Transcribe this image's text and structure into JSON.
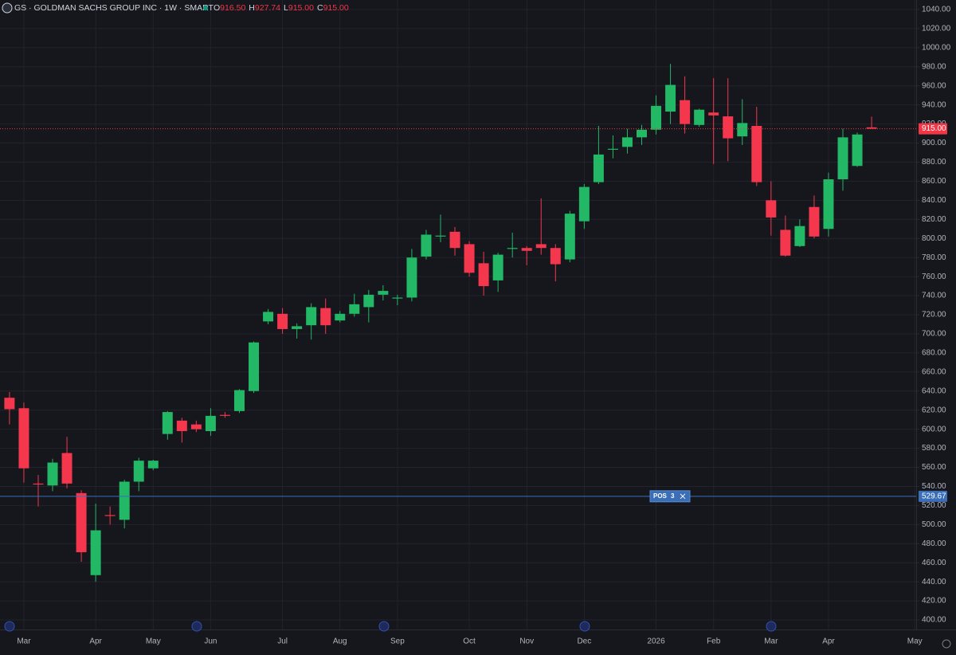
{
  "header": {
    "title": "GS · GOLDMAN SACHS GROUP INC · 1W · SMART",
    "ohlc": [
      {
        "label": "O",
        "value": "916.50"
      },
      {
        "label": "H",
        "value": "927.74"
      },
      {
        "label": "L",
        "value": "915.00"
      },
      {
        "label": "C",
        "value": "915.00"
      }
    ]
  },
  "chart_data": {
    "type": "candlestick",
    "up_color": "#22b865",
    "down_color": "#f5374e",
    "grid": true,
    "xlim": [
      -0.66,
      63.1
    ],
    "xticks": [
      {
        "value": 1,
        "label": "Mar"
      },
      {
        "value": 6,
        "label": "Apr"
      },
      {
        "value": 10,
        "label": "May"
      },
      {
        "value": 14,
        "label": "Jun"
      },
      {
        "value": 19,
        "label": "Jul"
      },
      {
        "value": 23,
        "label": "Aug"
      },
      {
        "value": 27,
        "label": "Sep"
      },
      {
        "value": 32,
        "label": "Oct"
      },
      {
        "value": 36,
        "label": "Nov"
      },
      {
        "value": 40,
        "label": "Dec"
      },
      {
        "value": 45,
        "label": "2026"
      },
      {
        "value": 49,
        "label": "Feb"
      },
      {
        "value": 53,
        "label": "Mar"
      },
      {
        "value": 57,
        "label": "Apr"
      },
      {
        "value": 63,
        "label": "May"
      }
    ],
    "ylim": [
      390,
      1050
    ],
    "yticks": [
      {
        "value": 400,
        "label": "400.00"
      },
      {
        "value": 420,
        "label": "420.00"
      },
      {
        "value": 440,
        "label": "440.00"
      },
      {
        "value": 460,
        "label": "460.00"
      },
      {
        "value": 480,
        "label": "480.00"
      },
      {
        "value": 500,
        "label": "500.00"
      },
      {
        "value": 520,
        "label": "520.00"
      },
      {
        "value": 540,
        "label": "540.00"
      },
      {
        "value": 560,
        "label": "560.00"
      },
      {
        "value": 580,
        "label": "580.00"
      },
      {
        "value": 600,
        "label": "600.00"
      },
      {
        "value": 620,
        "label": "620.00"
      },
      {
        "value": 640,
        "label": "640.00"
      },
      {
        "value": 660,
        "label": "660.00"
      },
      {
        "value": 680,
        "label": "680.00"
      },
      {
        "value": 700,
        "label": "700.00"
      },
      {
        "value": 720,
        "label": "720.00"
      },
      {
        "value": 740,
        "label": "740.00"
      },
      {
        "value": 760,
        "label": "760.00"
      },
      {
        "value": 780,
        "label": "780.00"
      },
      {
        "value": 800,
        "label": "800.00"
      },
      {
        "value": 820,
        "label": "820.00"
      },
      {
        "value": 840,
        "label": "840.00"
      },
      {
        "value": 860,
        "label": "860.00"
      },
      {
        "value": 880,
        "label": "880.00"
      },
      {
        "value": 900,
        "label": "900.00"
      },
      {
        "value": 920,
        "label": "920.00"
      },
      {
        "value": 940,
        "label": "940.00"
      },
      {
        "value": 960,
        "label": "960.00"
      },
      {
        "value": 980,
        "label": "980.00"
      },
      {
        "value": 1000,
        "label": "1000.00"
      },
      {
        "value": 1020,
        "label": "1020.00"
      },
      {
        "value": 1040,
        "label": "1040.00"
      }
    ],
    "open": [
      633,
      622,
      543,
      541,
      575,
      533,
      447,
      510,
      505,
      545,
      559,
      595,
      609,
      605,
      598,
      615,
      619,
      640,
      713,
      721,
      705,
      709,
      727,
      714,
      721,
      728,
      741,
      737,
      738,
      781,
      802,
      807,
      794,
      774,
      756,
      789,
      790,
      794,
      790,
      778,
      818,
      859,
      893,
      896,
      906,
      914,
      933,
      945,
      919,
      932,
      928,
      907,
      918,
      840,
      809,
      792,
      833,
      810,
      862,
      876,
      916.5
    ],
    "high": [
      639,
      628,
      552,
      569,
      592,
      536,
      522,
      519,
      547,
      570,
      568,
      619,
      612,
      609,
      622,
      618,
      642,
      692,
      726,
      727,
      711,
      732,
      737,
      724,
      742,
      746,
      751,
      741,
      789,
      809,
      825,
      812,
      797,
      786,
      785,
      806,
      792,
      842,
      794,
      829,
      857,
      918,
      908,
      915,
      919,
      950,
      983,
      970,
      936,
      968,
      968,
      946,
      938,
      860,
      824,
      820,
      845,
      869,
      915,
      911,
      927.74
    ],
    "low": [
      605,
      544,
      519,
      535,
      538,
      461,
      440,
      500,
      496,
      535,
      557,
      589,
      586,
      597,
      593,
      612,
      617,
      638,
      710,
      700,
      695,
      694,
      700,
      712,
      718,
      712,
      735,
      730,
      734,
      778,
      796,
      782,
      760,
      740,
      744,
      780,
      772,
      783,
      755,
      775,
      810,
      857,
      884,
      889,
      898,
      909,
      920,
      910,
      917,
      878,
      881,
      898,
      855,
      803,
      781,
      791,
      800,
      802,
      850,
      875,
      915
    ],
    "close": [
      621,
      559,
      542,
      565,
      543,
      471,
      494,
      509,
      545,
      567,
      567,
      618,
      598,
      600,
      614,
      614,
      641,
      691,
      723,
      705,
      708,
      728,
      709,
      721,
      731,
      741,
      745,
      738,
      780,
      804,
      803,
      790,
      764,
      750,
      783,
      790,
      787,
      790,
      773,
      826,
      854,
      888,
      894,
      906,
      914,
      939,
      961,
      920,
      935,
      929,
      905,
      921,
      859,
      822,
      782,
      813,
      802,
      862,
      906,
      909,
      915
    ],
    "price_line": {
      "value": 915,
      "label": "915.00",
      "color": "#f23645"
    },
    "position_line": {
      "value": 529.67,
      "label": "529.67",
      "text": "POS",
      "quantity": 3,
      "color": "#3a6fb8"
    }
  }
}
